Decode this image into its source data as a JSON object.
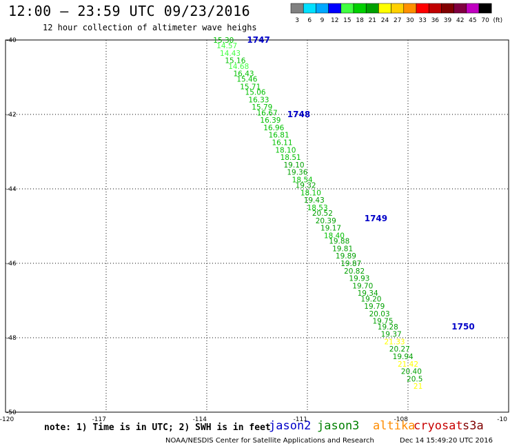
{
  "header": {
    "title": "12:00 – 23:59 UTC 09/23/2016",
    "subtitle": "12 hour collection of altimeter wave heighs"
  },
  "colorbar": {
    "colors": [
      "#808080",
      "#00e0ff",
      "#00a8ff",
      "#0000ff",
      "#40ff40",
      "#00d000",
      "#00a000",
      "#ffff00",
      "#ffd000",
      "#ff9000",
      "#ff0000",
      "#c00000",
      "#800000",
      "#800040",
      "#c000c0",
      "#000000"
    ],
    "labels": [
      "3",
      "6",
      "9",
      "12",
      "15",
      "18",
      "21",
      "24",
      "27",
      "30",
      "33",
      "36",
      "39",
      "42",
      "45",
      "70",
      "(ft)"
    ]
  },
  "map": {
    "lon_ticks": [
      "-120",
      "-117",
      "-114",
      "-111",
      "-108",
      "-10"
    ],
    "lat_ticks": [
      "-40",
      "-42",
      "-44",
      "-46",
      "-48",
      "-50"
    ],
    "pass_labels": [
      {
        "text": "1747",
        "lon": -112.8,
        "lat": -40.0
      },
      {
        "text": "1748",
        "lon": -111.6,
        "lat": -42.0
      },
      {
        "text": "1749",
        "lon": -109.3,
        "lat": -44.8
      },
      {
        "text": "1750",
        "lon": -106.7,
        "lat": -47.7
      }
    ],
    "points": [
      {
        "v": "15.30",
        "lon": -113.5,
        "lat": -40.0,
        "c": "#00c000"
      },
      {
        "v": "14.57",
        "lon": -113.4,
        "lat": -40.15,
        "c": "#40ff40"
      },
      {
        "v": "14.43",
        "lon": -113.3,
        "lat": -40.35,
        "c": "#40ff40"
      },
      {
        "v": "15.16",
        "lon": -113.15,
        "lat": -40.55,
        "c": "#00c000"
      },
      {
        "v": "14.68",
        "lon": -113.05,
        "lat": -40.7,
        "c": "#40ff40"
      },
      {
        "v": "16.43",
        "lon": -112.9,
        "lat": -40.9,
        "c": "#00c000"
      },
      {
        "v": "15.46",
        "lon": -112.8,
        "lat": -41.05,
        "c": "#00c000"
      },
      {
        "v": "15.71",
        "lon": -112.7,
        "lat": -41.25,
        "c": "#00c000"
      },
      {
        "v": "15.06",
        "lon": -112.55,
        "lat": -41.4,
        "c": "#00c000"
      },
      {
        "v": "16.33",
        "lon": -112.45,
        "lat": -41.6,
        "c": "#00c000"
      },
      {
        "v": "15.79",
        "lon": -112.35,
        "lat": -41.8,
        "c": "#00c000"
      },
      {
        "v": "16.67",
        "lon": -112.2,
        "lat": -41.95,
        "c": "#00c000"
      },
      {
        "v": "16.39",
        "lon": -112.1,
        "lat": -42.15,
        "c": "#00c000"
      },
      {
        "v": "16.96",
        "lon": -112.0,
        "lat": -42.35,
        "c": "#00c000"
      },
      {
        "v": "16.81",
        "lon": -111.85,
        "lat": -42.55,
        "c": "#00c000"
      },
      {
        "v": "16.11",
        "lon": -111.75,
        "lat": -42.75,
        "c": "#00c000"
      },
      {
        "v": "18.10",
        "lon": -111.65,
        "lat": -42.95,
        "c": "#00c000"
      },
      {
        "v": "18.51",
        "lon": -111.5,
        "lat": -43.15,
        "c": "#00c000"
      },
      {
        "v": "19.10",
        "lon": -111.4,
        "lat": -43.35,
        "c": "#00a000"
      },
      {
        "v": "19.36",
        "lon": -111.3,
        "lat": -43.55,
        "c": "#00a000"
      },
      {
        "v": "18.54",
        "lon": -111.15,
        "lat": -43.75,
        "c": "#00c000"
      },
      {
        "v": "19.32",
        "lon": -111.05,
        "lat": -43.9,
        "c": "#00a000"
      },
      {
        "v": "18.10",
        "lon": -110.9,
        "lat": -44.1,
        "c": "#00c000"
      },
      {
        "v": "19.43",
        "lon": -110.8,
        "lat": -44.3,
        "c": "#00a000"
      },
      {
        "v": "18.53",
        "lon": -110.7,
        "lat": -44.5,
        "c": "#00c000"
      },
      {
        "v": "20.52",
        "lon": -110.55,
        "lat": -44.65,
        "c": "#00a000"
      },
      {
        "v": "20.39",
        "lon": -110.45,
        "lat": -44.85,
        "c": "#00a000"
      },
      {
        "v": "19.17",
        "lon": -110.3,
        "lat": -45.05,
        "c": "#00a000"
      },
      {
        "v": "18.40",
        "lon": -110.2,
        "lat": -45.25,
        "c": "#00c000"
      },
      {
        "v": "19.88",
        "lon": -110.05,
        "lat": -45.4,
        "c": "#00a000"
      },
      {
        "v": "19.81",
        "lon": -109.95,
        "lat": -45.6,
        "c": "#00a000"
      },
      {
        "v": "19.89",
        "lon": -109.85,
        "lat": -45.8,
        "c": "#00a000"
      },
      {
        "v": "19.87",
        "lon": -109.7,
        "lat": -46.0,
        "c": "#00a000"
      },
      {
        "v": "20.82",
        "lon": -109.6,
        "lat": -46.2,
        "c": "#00a000"
      },
      {
        "v": "19.93",
        "lon": -109.45,
        "lat": -46.4,
        "c": "#00a000"
      },
      {
        "v": "19.70",
        "lon": -109.35,
        "lat": -46.6,
        "c": "#00a000"
      },
      {
        "v": "19.34",
        "lon": -109.2,
        "lat": -46.8,
        "c": "#00a000"
      },
      {
        "v": "19.20",
        "lon": -109.1,
        "lat": -46.95,
        "c": "#00a000"
      },
      {
        "v": "19.79",
        "lon": -109.0,
        "lat": -47.15,
        "c": "#00a000"
      },
      {
        "v": "20.03",
        "lon": -108.85,
        "lat": -47.35,
        "c": "#00a000"
      },
      {
        "v": "19.75",
        "lon": -108.75,
        "lat": -47.55,
        "c": "#00a000"
      },
      {
        "v": "19.28",
        "lon": -108.6,
        "lat": -47.7,
        "c": "#00a000"
      },
      {
        "v": "19.37",
        "lon": -108.5,
        "lat": -47.9,
        "c": "#00a000"
      },
      {
        "v": "21.33",
        "lon": -108.4,
        "lat": -48.1,
        "c": "#ffff00"
      },
      {
        "v": "20.27",
        "lon": -108.25,
        "lat": -48.3,
        "c": "#00a000"
      },
      {
        "v": "19.94",
        "lon": -108.15,
        "lat": -48.5,
        "c": "#00a000"
      },
      {
        "v": "21.42",
        "lon": -108.0,
        "lat": -48.7,
        "c": "#ffff00"
      },
      {
        "v": "20.40",
        "lon": -107.9,
        "lat": -48.9,
        "c": "#00a000"
      },
      {
        "v": "20.5",
        "lon": -107.8,
        "lat": -49.1,
        "c": "#00a000"
      },
      {
        "v": "21",
        "lon": -107.7,
        "lat": -49.3,
        "c": "#ffff00"
      }
    ]
  },
  "footer": {
    "note": "note: 1) Time is in UTC; 2) SWH is in feet",
    "satellites": [
      {
        "name": "jason2",
        "color": "#0000c8"
      },
      {
        "name": "jason3",
        "color": "#008000"
      },
      {
        "name": "altika",
        "color": "#ff8c00"
      },
      {
        "name": "cryosat",
        "color": "#c80000"
      },
      {
        "name": "s3a",
        "color": "#800000"
      }
    ],
    "credit": "NOAA/NESDIS Center for Satellite Applications and Research",
    "stamp": "Dec 14 15:49:20 UTC 2016"
  }
}
